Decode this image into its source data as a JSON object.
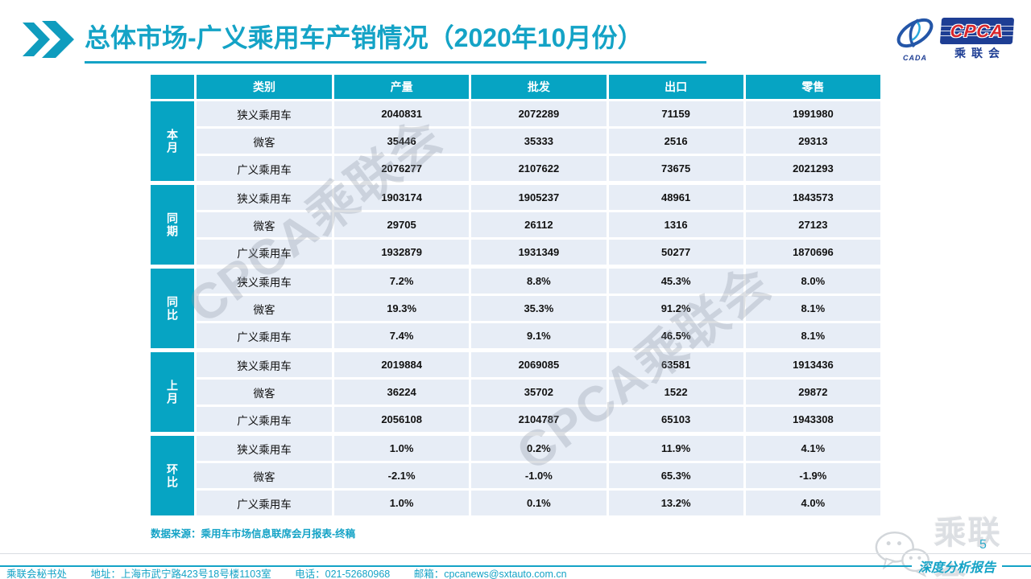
{
  "page": {
    "title": "总体市场-广义乘用车产销情况（2020年10月份）",
    "page_number": "5",
    "report_type_label": "深度分析报告"
  },
  "logo": {
    "cada_text": "CADA",
    "cpca_text": "CPCA",
    "cpca_cn": "乘联会"
  },
  "table": {
    "columns": [
      "类别",
      "产量",
      "批发",
      "出口",
      "零售"
    ],
    "groups": [
      {
        "label": "本月",
        "rows": [
          {
            "category": "狭义乘用车",
            "values": [
              "2040831",
              "2072289",
              "71159",
              "1991980"
            ]
          },
          {
            "category": "微客",
            "values": [
              "35446",
              "35333",
              "2516",
              "29313"
            ]
          },
          {
            "category": "广义乘用车",
            "values": [
              "2076277",
              "2107622",
              "73675",
              "2021293"
            ]
          }
        ]
      },
      {
        "label": "同期",
        "rows": [
          {
            "category": "狭义乘用车",
            "values": [
              "1903174",
              "1905237",
              "48961",
              "1843573"
            ]
          },
          {
            "category": "微客",
            "values": [
              "29705",
              "26112",
              "1316",
              "27123"
            ]
          },
          {
            "category": "广义乘用车",
            "values": [
              "1932879",
              "1931349",
              "50277",
              "1870696"
            ]
          }
        ]
      },
      {
        "label": "同比",
        "rows": [
          {
            "category": "狭义乘用车",
            "values": [
              "7.2%",
              "8.8%",
              "45.3%",
              "8.0%"
            ]
          },
          {
            "category": "微客",
            "values": [
              "19.3%",
              "35.3%",
              "91.2%",
              "8.1%"
            ]
          },
          {
            "category": "广义乘用车",
            "values": [
              "7.4%",
              "9.1%",
              "46.5%",
              "8.1%"
            ]
          }
        ]
      },
      {
        "label": "上月",
        "rows": [
          {
            "category": "狭义乘用车",
            "values": [
              "2019884",
              "2069085",
              "63581",
              "1913436"
            ]
          },
          {
            "category": "微客",
            "values": [
              "36224",
              "35702",
              "1522",
              "29872"
            ]
          },
          {
            "category": "广义乘用车",
            "values": [
              "2056108",
              "2104787",
              "65103",
              "1943308"
            ]
          }
        ]
      },
      {
        "label": "环比",
        "rows": [
          {
            "category": "狭义乘用车",
            "values": [
              "1.0%",
              "0.2%",
              "11.9%",
              "4.1%"
            ]
          },
          {
            "category": "微客",
            "values": [
              "-2.1%",
              "-1.0%",
              "65.3%",
              "-1.9%"
            ]
          },
          {
            "category": "广义乘用车",
            "values": [
              "1.0%",
              "0.1%",
              "13.2%",
              "4.0%"
            ]
          }
        ]
      }
    ],
    "source_note": "数据来源：乘用车市场信息联席会月报表-终稿"
  },
  "watermarks": {
    "diagonal_text": "CPCA乘联会",
    "corner_text": "乘联会"
  },
  "footer": {
    "segments": [
      "乘联会秘书处",
      "地址：上海市武宁路423号18号楼1103室",
      "电话：021-52680968",
      "邮箱：cpcanews@sxtauto.com.cn"
    ]
  },
  "colors": {
    "accent_cyan": "#14a3c6",
    "table_header_cyan": "#06a4c3",
    "row_bg": "#e7edf6",
    "logo_navy": "#1e3e94",
    "logo_red": "#d8262c",
    "watermark_gray": "#c9ced6"
  }
}
